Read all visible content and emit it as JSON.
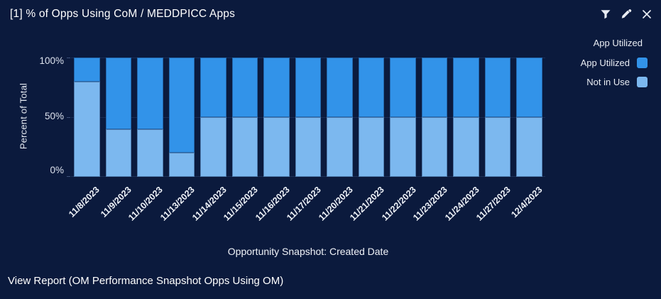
{
  "header": {
    "title": "[1] % of Opps Using CoM / MEDDPICC Apps",
    "icons": [
      "filter",
      "edit",
      "close"
    ]
  },
  "legend": {
    "title": "App Utilized",
    "items": [
      {
        "label": "App Utilized",
        "color": "#3293e9"
      },
      {
        "label": "Not in Use",
        "color": "#7cb8ef"
      }
    ]
  },
  "chart_data": {
    "type": "bar",
    "stacked": true,
    "percent_of_total": true,
    "title": "[1] % of Opps Using CoM / MEDDPICC Apps",
    "categories": [
      "11/8/2023",
      "11/9/2023",
      "11/10/2023",
      "11/13/2023",
      "11/14/2023",
      "11/15/2023",
      "11/16/2023",
      "11/17/2023",
      "11/20/2023",
      "11/21/2023",
      "11/22/2023",
      "11/23/2023",
      "11/24/2023",
      "11/27/2023",
      "12/4/2023"
    ],
    "series": [
      {
        "name": "App Utilized",
        "color": "#3293e9",
        "position": "top",
        "values": [
          20,
          60,
          60,
          80,
          50,
          50,
          50,
          50,
          50,
          50,
          50,
          50,
          50,
          50,
          50
        ]
      },
      {
        "name": "Not in Use",
        "color": "#7cb8ef",
        "position": "bottom",
        "values": [
          80,
          40,
          40,
          20,
          50,
          50,
          50,
          50,
          50,
          50,
          50,
          50,
          50,
          50,
          50
        ]
      }
    ],
    "xlabel": "Opportunity Snapshot: Created Date",
    "ylabel": "Percent of Total",
    "yticks": [
      "100%",
      "50%",
      "0%"
    ],
    "ylim": [
      0,
      100
    ],
    "grid": true,
    "legend_position": "top-right"
  },
  "footer": {
    "view_report": "View Report (OM Performance Snapshot Opps Using OM)"
  },
  "colors": {
    "background": "#0b1a3d",
    "text": "#eef2f8",
    "gridline": "#1a2c55",
    "series_app_utilized": "#3293e9",
    "series_not_in_use": "#7cb8ef"
  }
}
